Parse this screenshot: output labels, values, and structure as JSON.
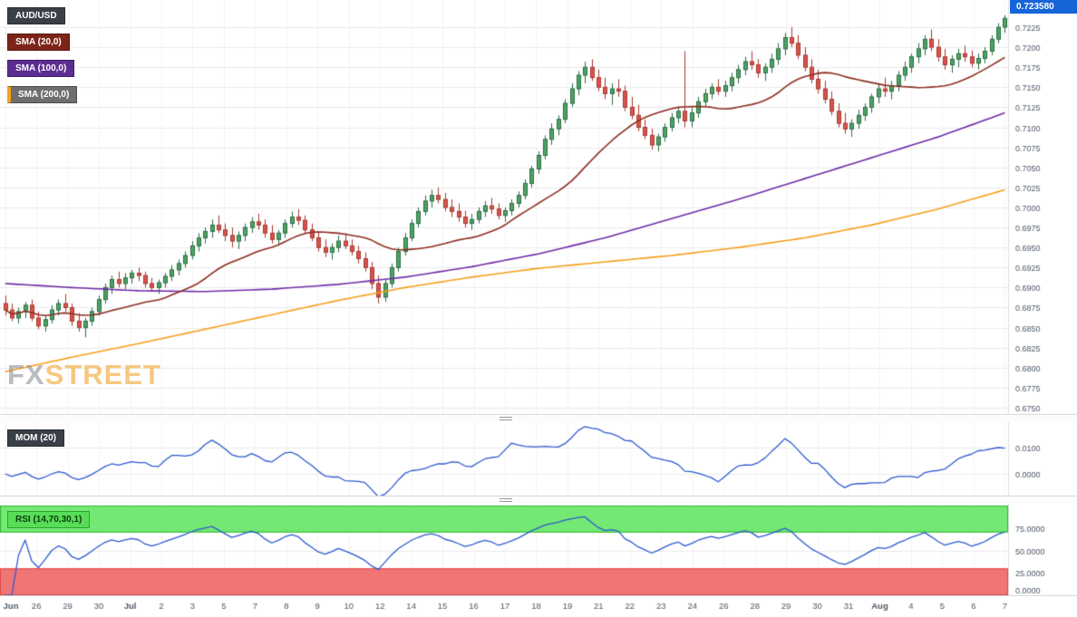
{
  "legend": {
    "pair": "AUD/USD",
    "sma20": "SMA (20,0)",
    "sma100": "SMA (100,0)",
    "sma200": "SMA (200,0)",
    "mom": "MOM (20)",
    "rsi": "RSI (14,70,30,1)"
  },
  "price_badge": "0.723580",
  "watermark": {
    "fx": "FX",
    "street": "STREET"
  },
  "colors": {
    "up": "#4da263",
    "up_border": "#2d6e45",
    "down": "#d9544c",
    "down_border": "#a83a32",
    "sma20": "#8f2d22",
    "sma100": "#6f2da8",
    "sma200": "#f6a01b",
    "indicator_line": "#2e5bcf",
    "grid_h": "#ebebeb",
    "grid_v": "#f4f4f4",
    "axis_text": "#4c5866",
    "badge_bg": "#1565d8",
    "rsi_upper_band": "#74e874",
    "rsi_upper_edge": "#2dbb2d",
    "rsi_lower_band": "#f07575",
    "rsi_lower_edge": "#e04848",
    "panel_border": "#d6d6d6",
    "chip_pair": "#3a3f47",
    "chip_sma20": "#7d2418",
    "chip_sma100": "#5c2d91",
    "chip_sma200": "#6e6e6e",
    "chip_mom": "#3a3f47",
    "chip_rsi": "#57dd57"
  },
  "axes": {
    "price_ticks": [
      "0.7225",
      "0.7200",
      "0.7175",
      "0.7150",
      "0.7125",
      "0.7100",
      "0.7075",
      "0.7050",
      "0.7025",
      "0.7000",
      "0.6975",
      "0.6950",
      "0.6925",
      "0.6900",
      "0.6875",
      "0.6850",
      "0.6825",
      "0.6800",
      "0.6775",
      "0.6750"
    ],
    "mom_ticks": [
      "0.0100",
      "0.0000"
    ],
    "rsi_ticks": [
      "75.0000",
      "50.0000",
      "25.0000",
      "0.0000"
    ],
    "x_labels": [
      "Jun",
      "26",
      "29",
      "30",
      "Jul",
      "2",
      "3",
      "5",
      "7",
      "8",
      "9",
      "10",
      "12",
      "14",
      "15",
      "16",
      "17",
      "18",
      "19",
      "21",
      "22",
      "23",
      "24",
      "26",
      "28",
      "29",
      "30",
      "31",
      "Aug",
      "4",
      "5",
      "6",
      "7"
    ]
  },
  "chart_data": [
    {
      "type": "candlestick",
      "title": "AUD/USD",
      "ylim": [
        0.675,
        0.7225
      ],
      "last_price": 0.72358,
      "candles": [
        [
          0.688,
          0.689,
          0.6865,
          0.6872
        ],
        [
          0.6872,
          0.688,
          0.6858,
          0.6862
        ],
        [
          0.6862,
          0.6875,
          0.6855,
          0.687
        ],
        [
          0.687,
          0.6882,
          0.6862,
          0.6878
        ],
        [
          0.6878,
          0.6885,
          0.6858,
          0.6862
        ],
        [
          0.6862,
          0.687,
          0.6848,
          0.6852
        ],
        [
          0.6852,
          0.6865,
          0.6845,
          0.686
        ],
        [
          0.686,
          0.6878,
          0.6855,
          0.6872
        ],
        [
          0.6872,
          0.6885,
          0.6865,
          0.688
        ],
        [
          0.688,
          0.6892,
          0.687,
          0.6875
        ],
        [
          0.6875,
          0.688,
          0.6852,
          0.6858
        ],
        [
          0.6858,
          0.6868,
          0.6845,
          0.685
        ],
        [
          0.685,
          0.6862,
          0.6838,
          0.6858
        ],
        [
          0.6858,
          0.6875,
          0.6852,
          0.687
        ],
        [
          0.687,
          0.689,
          0.6865,
          0.6885
        ],
        [
          0.6885,
          0.6905,
          0.688,
          0.69
        ],
        [
          0.69,
          0.6915,
          0.6892,
          0.691
        ],
        [
          0.691,
          0.692,
          0.69,
          0.6905
        ],
        [
          0.6905,
          0.6918,
          0.6898,
          0.6912
        ],
        [
          0.6912,
          0.6922,
          0.6905,
          0.6918
        ],
        [
          0.6918,
          0.6925,
          0.6908,
          0.6915
        ],
        [
          0.6915,
          0.692,
          0.69,
          0.6905
        ],
        [
          0.6905,
          0.6912,
          0.6895,
          0.69
        ],
        [
          0.69,
          0.691,
          0.6892,
          0.6906
        ],
        [
          0.6906,
          0.6918,
          0.69,
          0.6914
        ],
        [
          0.6914,
          0.6928,
          0.6908,
          0.6922
        ],
        [
          0.6922,
          0.6935,
          0.6915,
          0.693
        ],
        [
          0.693,
          0.6945,
          0.6925,
          0.694
        ],
        [
          0.694,
          0.6958,
          0.6935,
          0.6952
        ],
        [
          0.6952,
          0.6968,
          0.6945,
          0.6962
        ],
        [
          0.6962,
          0.6975,
          0.6955,
          0.697
        ],
        [
          0.697,
          0.6985,
          0.6962,
          0.6978
        ],
        [
          0.6978,
          0.699,
          0.6968,
          0.6972
        ],
        [
          0.6972,
          0.698,
          0.6958,
          0.6965
        ],
        [
          0.6965,
          0.6975,
          0.695,
          0.6958
        ],
        [
          0.6958,
          0.697,
          0.6948,
          0.6965
        ],
        [
          0.6965,
          0.698,
          0.6958,
          0.6975
        ],
        [
          0.6975,
          0.6988,
          0.6968,
          0.6982
        ],
        [
          0.6982,
          0.6992,
          0.6972,
          0.6978
        ],
        [
          0.6978,
          0.6985,
          0.6962,
          0.6968
        ],
        [
          0.6968,
          0.6978,
          0.6955,
          0.696
        ],
        [
          0.696,
          0.6972,
          0.6952,
          0.6968
        ],
        [
          0.6968,
          0.6985,
          0.6962,
          0.698
        ],
        [
          0.698,
          0.6995,
          0.6975,
          0.6988
        ],
        [
          0.6988,
          0.6998,
          0.6978,
          0.6984
        ],
        [
          0.6984,
          0.699,
          0.6968,
          0.6972
        ],
        [
          0.6972,
          0.698,
          0.6958,
          0.6962
        ],
        [
          0.6962,
          0.697,
          0.6945,
          0.695
        ],
        [
          0.695,
          0.696,
          0.6938,
          0.6944
        ],
        [
          0.6944,
          0.6955,
          0.6935,
          0.695
        ],
        [
          0.695,
          0.6965,
          0.6944,
          0.6958
        ],
        [
          0.6958,
          0.6968,
          0.6948,
          0.6952
        ],
        [
          0.6952,
          0.696,
          0.694,
          0.6945
        ],
        [
          0.6945,
          0.6952,
          0.693,
          0.6936
        ],
        [
          0.6936,
          0.6944,
          0.692,
          0.6925
        ],
        [
          0.6925,
          0.6932,
          0.6898,
          0.6905
        ],
        [
          0.6905,
          0.6915,
          0.688,
          0.6888
        ],
        [
          0.6888,
          0.691,
          0.6882,
          0.6905
        ],
        [
          0.6905,
          0.693,
          0.69,
          0.6925
        ],
        [
          0.6925,
          0.695,
          0.692,
          0.6945
        ],
        [
          0.6945,
          0.6968,
          0.694,
          0.6962
        ],
        [
          0.6962,
          0.6985,
          0.6958,
          0.698
        ],
        [
          0.698,
          0.7,
          0.6975,
          0.6995
        ],
        [
          0.6995,
          0.7015,
          0.699,
          0.7008
        ],
        [
          0.7008,
          0.7022,
          0.7,
          0.7015
        ],
        [
          0.7015,
          0.7025,
          0.7005,
          0.701
        ],
        [
          0.701,
          0.7018,
          0.6995,
          0.7
        ],
        [
          0.7,
          0.701,
          0.6988,
          0.6995
        ],
        [
          0.6995,
          0.7005,
          0.6982,
          0.6988
        ],
        [
          0.6988,
          0.6996,
          0.6975,
          0.698
        ],
        [
          0.698,
          0.6992,
          0.6972,
          0.6985
        ],
        [
          0.6985,
          0.7,
          0.698,
          0.6995
        ],
        [
          0.6995,
          0.7008,
          0.6988,
          0.7002
        ],
        [
          0.7002,
          0.7012,
          0.6992,
          0.6998
        ],
        [
          0.6998,
          0.7005,
          0.6985,
          0.699
        ],
        [
          0.699,
          0.7,
          0.6982,
          0.6996
        ],
        [
          0.6996,
          0.701,
          0.699,
          0.7005
        ],
        [
          0.7005,
          0.702,
          0.7,
          0.7015
        ],
        [
          0.7015,
          0.7035,
          0.701,
          0.703
        ],
        [
          0.703,
          0.7052,
          0.7025,
          0.7048
        ],
        [
          0.7048,
          0.707,
          0.7042,
          0.7065
        ],
        [
          0.7065,
          0.709,
          0.706,
          0.7085
        ],
        [
          0.7085,
          0.7105,
          0.7078,
          0.7098
        ],
        [
          0.7098,
          0.7115,
          0.709,
          0.711
        ],
        [
          0.711,
          0.7135,
          0.7105,
          0.713
        ],
        [
          0.713,
          0.7155,
          0.7125,
          0.7148
        ],
        [
          0.7148,
          0.717,
          0.714,
          0.7165
        ],
        [
          0.7165,
          0.7182,
          0.7155,
          0.7175
        ],
        [
          0.7175,
          0.7185,
          0.7158,
          0.7162
        ],
        [
          0.7162,
          0.7172,
          0.7145,
          0.715
        ],
        [
          0.715,
          0.7162,
          0.7135,
          0.7142
        ],
        [
          0.7142,
          0.7155,
          0.7128,
          0.7148
        ],
        [
          0.7148,
          0.716,
          0.7138,
          0.7145
        ],
        [
          0.7145,
          0.7152,
          0.712,
          0.7125
        ],
        [
          0.7125,
          0.7138,
          0.711,
          0.7115
        ],
        [
          0.7115,
          0.7128,
          0.7095,
          0.71
        ],
        [
          0.71,
          0.711,
          0.7085,
          0.709
        ],
        [
          0.709,
          0.7098,
          0.7072,
          0.7078
        ],
        [
          0.7078,
          0.7092,
          0.707,
          0.7088
        ],
        [
          0.7088,
          0.7105,
          0.7082,
          0.71
        ],
        [
          0.71,
          0.7118,
          0.7095,
          0.7112
        ],
        [
          0.7112,
          0.7125,
          0.7105,
          0.712
        ],
        [
          0.712,
          0.7195,
          0.71,
          0.7108
        ],
        [
          0.7108,
          0.7125,
          0.71,
          0.7118
        ],
        [
          0.7118,
          0.7138,
          0.7112,
          0.7132
        ],
        [
          0.7132,
          0.7148,
          0.7125,
          0.7142
        ],
        [
          0.7142,
          0.7155,
          0.7135,
          0.715
        ],
        [
          0.715,
          0.716,
          0.714,
          0.7145
        ],
        [
          0.7145,
          0.7158,
          0.7138,
          0.7152
        ],
        [
          0.7152,
          0.7168,
          0.7145,
          0.7162
        ],
        [
          0.7162,
          0.7178,
          0.7155,
          0.7172
        ],
        [
          0.7172,
          0.7188,
          0.7165,
          0.7182
        ],
        [
          0.7182,
          0.7195,
          0.7172,
          0.7178
        ],
        [
          0.7178,
          0.7185,
          0.7162,
          0.7168
        ],
        [
          0.7168,
          0.718,
          0.7158,
          0.7175
        ],
        [
          0.7175,
          0.7192,
          0.7168,
          0.7185
        ],
        [
          0.7185,
          0.7205,
          0.7178,
          0.7198
        ],
        [
          0.7198,
          0.7218,
          0.719,
          0.7212
        ],
        [
          0.7212,
          0.7225,
          0.72,
          0.7205
        ],
        [
          0.7205,
          0.7215,
          0.7185,
          0.719
        ],
        [
          0.719,
          0.72,
          0.717,
          0.7175
        ],
        [
          0.7175,
          0.7185,
          0.7155,
          0.716
        ],
        [
          0.716,
          0.7172,
          0.7142,
          0.7148
        ],
        [
          0.7148,
          0.7158,
          0.713,
          0.7135
        ],
        [
          0.7135,
          0.7145,
          0.7115,
          0.712
        ],
        [
          0.712,
          0.713,
          0.71,
          0.7105
        ],
        [
          0.7105,
          0.7118,
          0.7092,
          0.7098
        ],
        [
          0.7098,
          0.711,
          0.7088,
          0.7105
        ],
        [
          0.7105,
          0.7122,
          0.7098,
          0.7115
        ],
        [
          0.7115,
          0.713,
          0.7108,
          0.7125
        ],
        [
          0.7125,
          0.7142,
          0.7118,
          0.7138
        ],
        [
          0.7138,
          0.7155,
          0.713,
          0.7148
        ],
        [
          0.7148,
          0.7162,
          0.7138,
          0.7145
        ],
        [
          0.7145,
          0.7158,
          0.7135,
          0.7152
        ],
        [
          0.7152,
          0.717,
          0.7145,
          0.7165
        ],
        [
          0.7165,
          0.7182,
          0.7158,
          0.7175
        ],
        [
          0.7175,
          0.7192,
          0.7168,
          0.7188
        ],
        [
          0.7188,
          0.7205,
          0.718,
          0.7198
        ],
        [
          0.7198,
          0.7215,
          0.719,
          0.721
        ],
        [
          0.721,
          0.7222,
          0.7195,
          0.72
        ],
        [
          0.72,
          0.721,
          0.7182,
          0.7188
        ],
        [
          0.7188,
          0.7198,
          0.7172,
          0.7178
        ],
        [
          0.7178,
          0.719,
          0.7168,
          0.7185
        ],
        [
          0.7185,
          0.7198,
          0.7175,
          0.7192
        ],
        [
          0.7192,
          0.7202,
          0.7182,
          0.7188
        ],
        [
          0.7188,
          0.7196,
          0.7175,
          0.718
        ],
        [
          0.718,
          0.7192,
          0.7172,
          0.7186
        ],
        [
          0.7186,
          0.72,
          0.718,
          0.7195
        ],
        [
          0.7195,
          0.7215,
          0.719,
          0.721
        ],
        [
          0.721,
          0.723,
          0.7205,
          0.7225
        ],
        [
          0.7225,
          0.724,
          0.7218,
          0.7236
        ]
      ],
      "overlays": [
        {
          "name": "SMA (20,0)",
          "type": "sma",
          "period": 20,
          "derived_from": "candles"
        },
        {
          "name": "SMA (100,0)",
          "type": "sma",
          "period": 100,
          "sampled": {
            "idx": [
              0,
              10,
              20,
              30,
              40,
              50,
              60,
              70,
              80,
              90,
              100,
              110,
              120,
              130,
              140,
              150
            ],
            "val": [
              0.6905,
              0.69,
              0.6896,
              0.6895,
              0.6898,
              0.6904,
              0.6913,
              0.6926,
              0.6942,
              0.6962,
              0.6986,
              0.701,
              0.7036,
              0.7062,
              0.7088,
              0.7118
            ]
          }
        },
        {
          "name": "SMA (200,0)",
          "type": "sma",
          "period": 200,
          "sampled": {
            "idx": [
              0,
              10,
              20,
              30,
              40,
              50,
              60,
              70,
              80,
              90,
              100,
              110,
              120,
              130,
              140,
              150
            ],
            "val": [
              0.6795,
              0.6813,
              0.683,
              0.6848,
              0.6866,
              0.6884,
              0.69,
              0.6913,
              0.6924,
              0.6932,
              0.694,
              0.695,
              0.6962,
              0.6978,
              0.6998,
              0.7022
            ]
          }
        }
      ]
    },
    {
      "type": "line",
      "title": "MOM (20)",
      "period": 20,
      "derived_from": "candles",
      "ylim": [
        -0.008,
        0.019
      ],
      "ticks": [
        0.01,
        0
      ]
    },
    {
      "type": "line",
      "title": "RSI (14,70,30,1)",
      "period": 14,
      "derived_from": "candles",
      "ylim": [
        0,
        100
      ],
      "bands": {
        "upper": [
          70,
          100
        ],
        "lower": [
          0,
          30
        ]
      },
      "ticks": [
        75,
        50,
        25,
        0
      ]
    }
  ]
}
